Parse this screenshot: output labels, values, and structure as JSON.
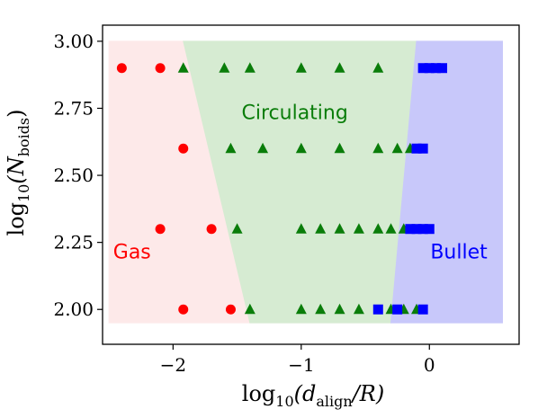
{
  "chart_data": {
    "type": "scatter",
    "xlabel_main": "log",
    "xlabel_sub": "10",
    "xlabel_rest": "(d",
    "xlabel_subscript": "align",
    "xlabel_end": "/R)",
    "ylabel_main": "log",
    "ylabel_sub": "10",
    "ylabel_rest": "(N",
    "ylabel_subscript": "boids",
    "ylabel_end": ")",
    "xlim": [
      -2.55,
      0.7
    ],
    "ylim": [
      1.87,
      3.06
    ],
    "x_ticks": [
      {
        "value": -2,
        "label": "−2"
      },
      {
        "value": -1,
        "label": "−1"
      },
      {
        "value": 0,
        "label": "0"
      }
    ],
    "y_ticks": [
      {
        "value": 2.0,
        "label": "2.00"
      },
      {
        "value": 2.25,
        "label": "2.25"
      },
      {
        "value": 2.5,
        "label": "2.50"
      },
      {
        "value": 2.75,
        "label": "2.75"
      },
      {
        "value": 3.0,
        "label": "3.00"
      }
    ],
    "regions": [
      {
        "name": "Gas",
        "color": "#ff0000",
        "fill": "#fde9e9",
        "label_at": [
          -2.32,
          2.19
        ],
        "polygon": [
          [
            -2.5,
            1.95
          ],
          [
            -2.5,
            3.0
          ],
          [
            -1.92,
            3.0
          ],
          [
            -1.4,
            1.95
          ]
        ]
      },
      {
        "name": "Circulating",
        "color": "#0a7d0a",
        "fill": "#d6ebd2",
        "label_at": [
          -1.05,
          2.71
        ],
        "polygon": [
          [
            -1.92,
            3.0
          ],
          [
            -0.1,
            3.0
          ],
          [
            -0.3,
            1.95
          ],
          [
            -1.4,
            1.95
          ]
        ]
      },
      {
        "name": "Bullet",
        "color": "#0000ff",
        "fill": "#c8c8fa",
        "label_at": [
          0.23,
          2.19
        ],
        "polygon": [
          [
            -0.1,
            3.0
          ],
          [
            0.57,
            3.0
          ],
          [
            0.57,
            1.95
          ],
          [
            -0.3,
            1.95
          ]
        ]
      }
    ],
    "series": [
      {
        "marker": "circle",
        "color": "#ff0000",
        "points": [
          [
            -2.4,
            2.9
          ],
          [
            -2.1,
            2.9
          ],
          [
            -1.92,
            2.6
          ],
          [
            -2.1,
            2.3
          ],
          [
            -1.7,
            2.3
          ],
          [
            -1.92,
            2.0
          ],
          [
            -1.55,
            2.0
          ]
        ]
      },
      {
        "marker": "triangle",
        "color": "#0a7d0a",
        "points": [
          [
            -1.92,
            2.9
          ],
          [
            -1.6,
            2.9
          ],
          [
            -1.4,
            2.9
          ],
          [
            -1.0,
            2.9
          ],
          [
            -0.7,
            2.9
          ],
          [
            -0.4,
            2.9
          ],
          [
            -1.55,
            2.6
          ],
          [
            -1.3,
            2.6
          ],
          [
            -1.0,
            2.6
          ],
          [
            -0.7,
            2.6
          ],
          [
            -0.4,
            2.6
          ],
          [
            -0.25,
            2.6
          ],
          [
            -0.15,
            2.6
          ],
          [
            -1.5,
            2.3
          ],
          [
            -1.0,
            2.3
          ],
          [
            -0.85,
            2.3
          ],
          [
            -0.7,
            2.3
          ],
          [
            -0.55,
            2.3
          ],
          [
            -0.4,
            2.3
          ],
          [
            -0.3,
            2.3
          ],
          [
            -0.2,
            2.3
          ],
          [
            -1.4,
            2.0
          ],
          [
            -1.0,
            2.0
          ],
          [
            -0.85,
            2.0
          ],
          [
            -0.7,
            2.0
          ],
          [
            -0.55,
            2.0
          ],
          [
            -0.3,
            2.0
          ],
          [
            -0.2,
            2.0
          ],
          [
            -0.1,
            2.0
          ]
        ]
      },
      {
        "marker": "square",
        "color": "#0000ff",
        "points": [
          [
            -0.05,
            2.9
          ],
          [
            0.0,
            2.9
          ],
          [
            0.05,
            2.9
          ],
          [
            0.1,
            2.9
          ],
          [
            -0.1,
            2.6
          ],
          [
            -0.05,
            2.6
          ],
          [
            -0.15,
            2.3
          ],
          [
            -0.1,
            2.3
          ],
          [
            -0.05,
            2.3
          ],
          [
            0.0,
            2.3
          ],
          [
            -0.4,
            2.0
          ],
          [
            -0.25,
            2.0
          ],
          [
            -0.05,
            2.0
          ]
        ]
      }
    ]
  }
}
